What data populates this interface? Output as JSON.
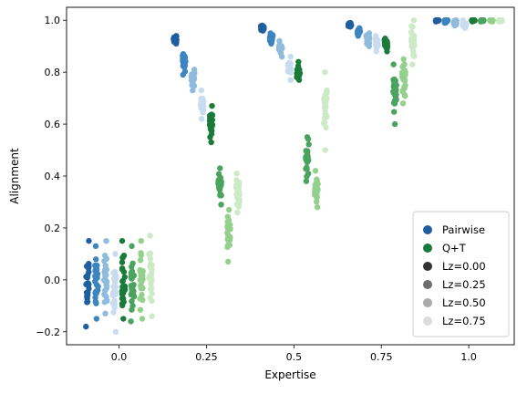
{
  "chart_data": {
    "type": "scatter",
    "title": "",
    "xlabel": "Expertise",
    "ylabel": "Alignment",
    "xlim": [
      -0.15,
      1.13
    ],
    "ylim": [
      -0.25,
      1.05
    ],
    "x_ticks": [
      0.0,
      0.25,
      0.5,
      0.75,
      1.0
    ],
    "x_tick_labels": [
      "0.0",
      "0.25",
      "0.5",
      "0.75",
      "1.0"
    ],
    "y_ticks": [
      -0.2,
      0.0,
      0.2,
      0.4,
      0.6,
      0.8,
      1.0
    ],
    "y_tick_labels": [
      "−0.2",
      "0.0",
      "0.2",
      "0.4",
      "0.6",
      "0.8",
      "1.0"
    ],
    "grid": false,
    "legend": {
      "placement": "lower-right",
      "entries": [
        {
          "label": "Pairwise",
          "color": "#1f5fa0"
        },
        {
          "label": "Q+T",
          "color": "#1a7a3a"
        },
        {
          "label": "Lz=0.00",
          "color": "#333333"
        },
        {
          "label": "Lz=0.25",
          "color": "#6e6e6e"
        },
        {
          "label": "Lz=0.50",
          "color": "#aaaaaa"
        },
        {
          "label": "Lz=0.75",
          "color": "#dcdcdc"
        }
      ]
    },
    "series": [
      {
        "method": "Pairwise",
        "lz": 0.0,
        "color": "#1f5fa0",
        "expertise": [
          0.0,
          0.25,
          0.5,
          0.75,
          1.0
        ],
        "alignment_center": [
          -0.02,
          0.925,
          0.972,
          0.982,
          1.0
        ],
        "alignment_range": [
          [
            -0.18,
            0.15
          ],
          [
            0.91,
            0.94
          ],
          [
            0.96,
            0.98
          ],
          [
            0.975,
            0.99
          ],
          [
            0.995,
            1.0
          ]
        ]
      },
      {
        "method": "Pairwise",
        "lz": 0.25,
        "color": "#3d85c0",
        "expertise": [
          0.0,
          0.25,
          0.5,
          0.75,
          1.0
        ],
        "alignment_center": [
          -0.02,
          0.84,
          0.935,
          0.96,
          1.0
        ],
        "alignment_range": [
          [
            -0.15,
            0.13
          ],
          [
            0.79,
            0.87
          ],
          [
            0.91,
            0.95
          ],
          [
            0.94,
            0.97
          ],
          [
            0.99,
            1.0
          ]
        ]
      },
      {
        "method": "Pairwise",
        "lz": 0.5,
        "color": "#8fbcdc",
        "expertise": [
          0.0,
          0.25,
          0.5,
          0.75,
          1.0
        ],
        "alignment_center": [
          -0.02,
          0.78,
          0.89,
          0.93,
          0.99
        ],
        "alignment_range": [
          [
            -0.13,
            0.15
          ],
          [
            0.73,
            0.81
          ],
          [
            0.86,
            0.92
          ],
          [
            0.9,
            0.95
          ],
          [
            0.98,
            1.0
          ]
        ]
      },
      {
        "method": "Pairwise",
        "lz": 0.75,
        "color": "#c9dcef",
        "expertise": [
          0.0,
          0.25,
          0.5,
          0.75,
          1.0
        ],
        "alignment_center": [
          -0.03,
          0.67,
          0.82,
          0.91,
          0.98
        ],
        "alignment_range": [
          [
            -0.2,
            0.1
          ],
          [
            0.62,
            0.73
          ],
          [
            0.77,
            0.86
          ],
          [
            0.88,
            0.94
          ],
          [
            0.97,
            1.0
          ]
        ]
      },
      {
        "method": "Q+T",
        "lz": 0.0,
        "color": "#1a7a3a",
        "expertise": [
          0.0,
          0.25,
          0.5,
          0.75,
          1.0
        ],
        "alignment_center": [
          0.0,
          0.6,
          0.8,
          0.91,
          1.0
        ],
        "alignment_range": [
          [
            -0.15,
            0.15
          ],
          [
            0.53,
            0.67
          ],
          [
            0.77,
            0.84
          ],
          [
            0.88,
            0.93
          ],
          [
            0.995,
            1.0
          ]
        ]
      },
      {
        "method": "Q+T",
        "lz": 0.25,
        "color": "#4aa35e",
        "expertise": [
          0.0,
          0.25,
          0.5,
          0.75,
          1.0
        ],
        "alignment_center": [
          0.0,
          0.36,
          0.46,
          0.73,
          1.0
        ],
        "alignment_range": [
          [
            -0.16,
            0.13
          ],
          [
            0.29,
            0.43
          ],
          [
            0.38,
            0.55
          ],
          [
            0.6,
            0.83
          ],
          [
            0.995,
            1.0
          ]
        ]
      },
      {
        "method": "Q+T",
        "lz": 0.5,
        "color": "#93d08c",
        "expertise": [
          0.0,
          0.25,
          0.5,
          0.75,
          1.0
        ],
        "alignment_center": [
          0.0,
          0.19,
          0.36,
          0.78,
          1.0
        ],
        "alignment_range": [
          [
            -0.15,
            0.15
          ],
          [
            0.07,
            0.27
          ],
          [
            0.28,
            0.42
          ],
          [
            0.68,
            0.85
          ],
          [
            0.995,
            1.0
          ]
        ]
      },
      {
        "method": "Q+T",
        "lz": 0.75,
        "color": "#cdeac7",
        "expertise": [
          0.0,
          0.25,
          0.5,
          0.75,
          1.0
        ],
        "alignment_center": [
          0.01,
          0.34,
          0.67,
          0.92,
          1.0
        ],
        "alignment_range": [
          [
            -0.14,
            0.17
          ],
          [
            0.26,
            0.41
          ],
          [
            0.5,
            0.8
          ],
          [
            0.83,
            1.0
          ],
          [
            0.995,
            1.0
          ]
        ]
      }
    ]
  }
}
